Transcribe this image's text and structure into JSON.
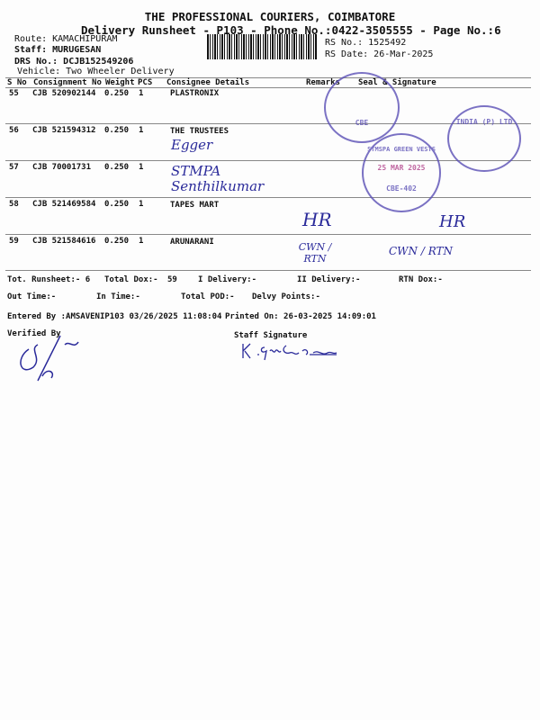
{
  "header": {
    "company": "THE PROFESSIONAL COURIERS, COIMBATORE",
    "subtitle": "Delivery Runsheet - P103 - Phone No.:0422-3505555 - Page No.:6",
    "route": "Route: KAMACHIPURAM",
    "staff": "Staff: MURUGESAN",
    "drs": "DRS No.: DCJB152549206",
    "vehicle": "Vehicle: Two Wheeler Delivery",
    "rs_no": "RS No.: 1525492",
    "rs_date": "RS Date: 26-Mar-2025"
  },
  "table": {
    "columns": [
      "S No",
      "Consignment No",
      "Weight",
      "PCS",
      "Consignee Details",
      "Remarks",
      "Seal & Signature"
    ],
    "rows": [
      {
        "sno": "55",
        "cn": "CJB 520902144",
        "weight": "0.250",
        "pcs": "1",
        "consignee": "PLASTRONIX",
        "handwriting": ""
      },
      {
        "sno": "56",
        "cn": "CJB 521594312",
        "weight": "0.250",
        "pcs": "1",
        "consignee": "THE TRUSTEES",
        "handwriting": "Egger"
      },
      {
        "sno": "57",
        "cn": "CJB 70001731",
        "weight": "0.250",
        "pcs": "1",
        "consignee": "",
        "handwriting": "STMPA Senthilkumar"
      },
      {
        "sno": "58",
        "cn": "CJB 521469584",
        "weight": "0.250",
        "pcs": "1",
        "consignee": "TAPES MART",
        "handwriting": "HR"
      },
      {
        "sno": "59",
        "cn": "CJB 521584616",
        "weight": "0.250",
        "pcs": "1",
        "consignee": "ARUNARANI",
        "handwriting": "CWN / RTN"
      }
    ]
  },
  "summary": {
    "tot_runsheet": "Tot. Runsheet:- 6",
    "total_dox": "Total Dox:-",
    "total_dox_val": "59",
    "i_delivery": "I Delivery:-",
    "ii_delivery": "II Delivery:-",
    "rtn_dox": "RTN Dox:-",
    "out_time": "Out Time:-",
    "in_time": "In Time:-",
    "total_pod": "Total POD:-",
    "delvy_points": "Delvy Points:-",
    "entered_by": "Entered By :AMSAVENIP103 03/26/2025 11:08:04",
    "printed_on": "Printed On: 26-03-2025 14:09:01",
    "verified_by": "Verified By",
    "staff_signature": "Staff Signature"
  },
  "stamps": {
    "stamp1": "CBE-402",
    "stamp2": "STMSPA GREEN VESTS",
    "stamp3": "INDIA (P) LTD",
    "stamp_date": "25 MAR 2025"
  },
  "colors": {
    "ink": "#2a2a9a",
    "stamp": "#5a4fb5"
  }
}
